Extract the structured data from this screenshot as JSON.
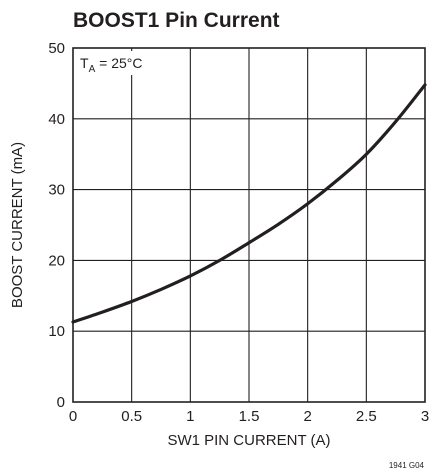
{
  "chart_data": {
    "type": "line",
    "title": "BOOST1 Pin Current",
    "xlabel": "SW1 PIN CURRENT (A)",
    "ylabel": "BOOST CURRENT (mA)",
    "xlim": [
      0,
      3
    ],
    "ylim": [
      0,
      50
    ],
    "x_ticks": [
      "0",
      "0.5",
      "1",
      "1.5",
      "2",
      "2.5",
      "3"
    ],
    "y_ticks": [
      "0",
      "10",
      "20",
      "30",
      "40",
      "50"
    ],
    "grid": true,
    "annotation": {
      "main": "T",
      "sub": "A",
      "rest": " = 25°C"
    },
    "figure_id": "1941 G04",
    "series": [
      {
        "x": [
          0,
          0.25,
          0.5,
          0.75,
          1.0,
          1.25,
          1.5,
          1.75,
          2.0,
          2.25,
          2.5,
          2.75,
          3.0
        ],
        "y": [
          11.3,
          12.7,
          14.2,
          15.9,
          17.8,
          20.0,
          22.5,
          25.1,
          28.0,
          31.3,
          35.0,
          39.6,
          44.8
        ]
      }
    ]
  }
}
